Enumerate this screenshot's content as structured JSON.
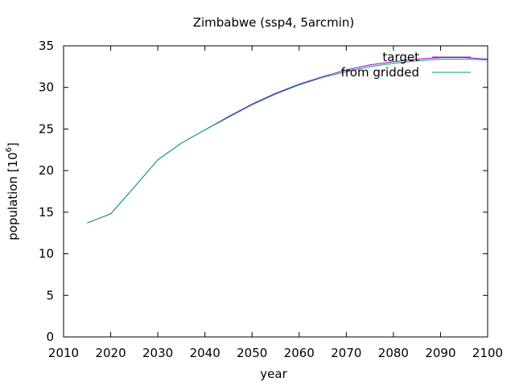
{
  "chart_data": {
    "type": "line",
    "title": "Zimbabwe (ssp4, 5arcmin)",
    "xlabel": "year",
    "ylabel_base": "population [10",
    "ylabel_exp": "6",
    "ylabel_close": "]",
    "xlim": [
      2010,
      2100
    ],
    "ylim": [
      0,
      35
    ],
    "xticks": [
      2010,
      2020,
      2030,
      2040,
      2050,
      2060,
      2070,
      2080,
      2090,
      2100
    ],
    "yticks": [
      0,
      5,
      10,
      15,
      20,
      25,
      30,
      35
    ],
    "grid": false,
    "legend_position": "top-right",
    "series": [
      {
        "name": "target",
        "color": "#9400d3",
        "x": [
          2015,
          2020,
          2025,
          2030,
          2035,
          2040,
          2045,
          2050,
          2055,
          2060,
          2065,
          2070,
          2075,
          2080,
          2085,
          2090,
          2095,
          2100
        ],
        "y": [
          13.7,
          14.8,
          18.0,
          21.3,
          23.3,
          24.9,
          26.5,
          28.0,
          29.3,
          30.4,
          31.3,
          32.1,
          32.7,
          33.1,
          33.4,
          33.6,
          33.6,
          33.4
        ]
      },
      {
        "name": "from gridded",
        "color": "#009e73",
        "x": [
          2015,
          2020,
          2025,
          2030,
          2035,
          2040,
          2045,
          2050,
          2055,
          2060,
          2065,
          2070,
          2075,
          2080,
          2085,
          2090,
          2095,
          2100
        ],
        "y": [
          13.7,
          14.8,
          18.0,
          21.3,
          23.3,
          24.9,
          26.4,
          27.9,
          29.2,
          30.3,
          31.2,
          31.9,
          32.5,
          32.9,
          33.2,
          33.4,
          33.4,
          33.3
        ]
      }
    ]
  }
}
